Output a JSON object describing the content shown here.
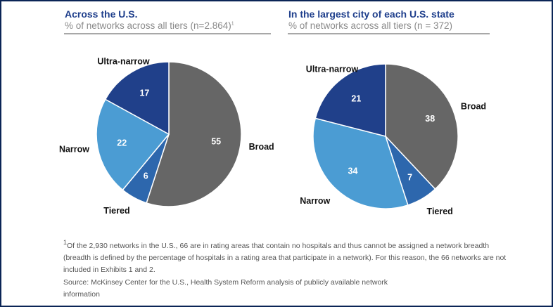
{
  "chart_data": [
    {
      "type": "pie",
      "title": "Across the U.S.",
      "subtitle": "% of networks across all tiers (n=2.864)",
      "subtitle_footnote_marker": "1",
      "start": "12 o'clock, clockwise",
      "slices": [
        {
          "label": "Broad",
          "value": 55,
          "color": "#666666"
        },
        {
          "label": "Tiered",
          "value": 6,
          "color": "#2d67ad"
        },
        {
          "label": "Narrow",
          "value": 22,
          "color": "#4b9cd3"
        },
        {
          "label": "Ultra-narrow",
          "value": 17,
          "color": "#20408a"
        }
      ]
    },
    {
      "type": "pie",
      "title": "In the largest city of each U.S. state",
      "subtitle": "% of networks across all tiers (n = 372)",
      "subtitle_footnote_marker": "",
      "start": "12 o'clock, clockwise",
      "slices": [
        {
          "label": "Broad",
          "value": 38,
          "color": "#666666"
        },
        {
          "label": "Tiered",
          "value": 7,
          "color": "#2d67ad"
        },
        {
          "label": "Narrow",
          "value": 34,
          "color": "#4b9cd3"
        },
        {
          "label": "Ultra-narrow",
          "value": 21,
          "color": "#20408a"
        }
      ]
    }
  ],
  "footnote": {
    "marker": "1",
    "text": "Of the 2,930 networks in the U.S., 66 are in rating areas that contain no hospitals and thus cannot be assigned a network breadth (breadth is defined by the percentage of hospitals in a rating area that participate in a network). For this reason, the 66 networks are not included in Exhibits 1 and 2."
  },
  "source": "Source: McKinsey Center for the U.S., Health System Reform analysis of publicly available network information",
  "colors": {
    "title": "#1f3f8c",
    "frame": "#0b2556"
  }
}
